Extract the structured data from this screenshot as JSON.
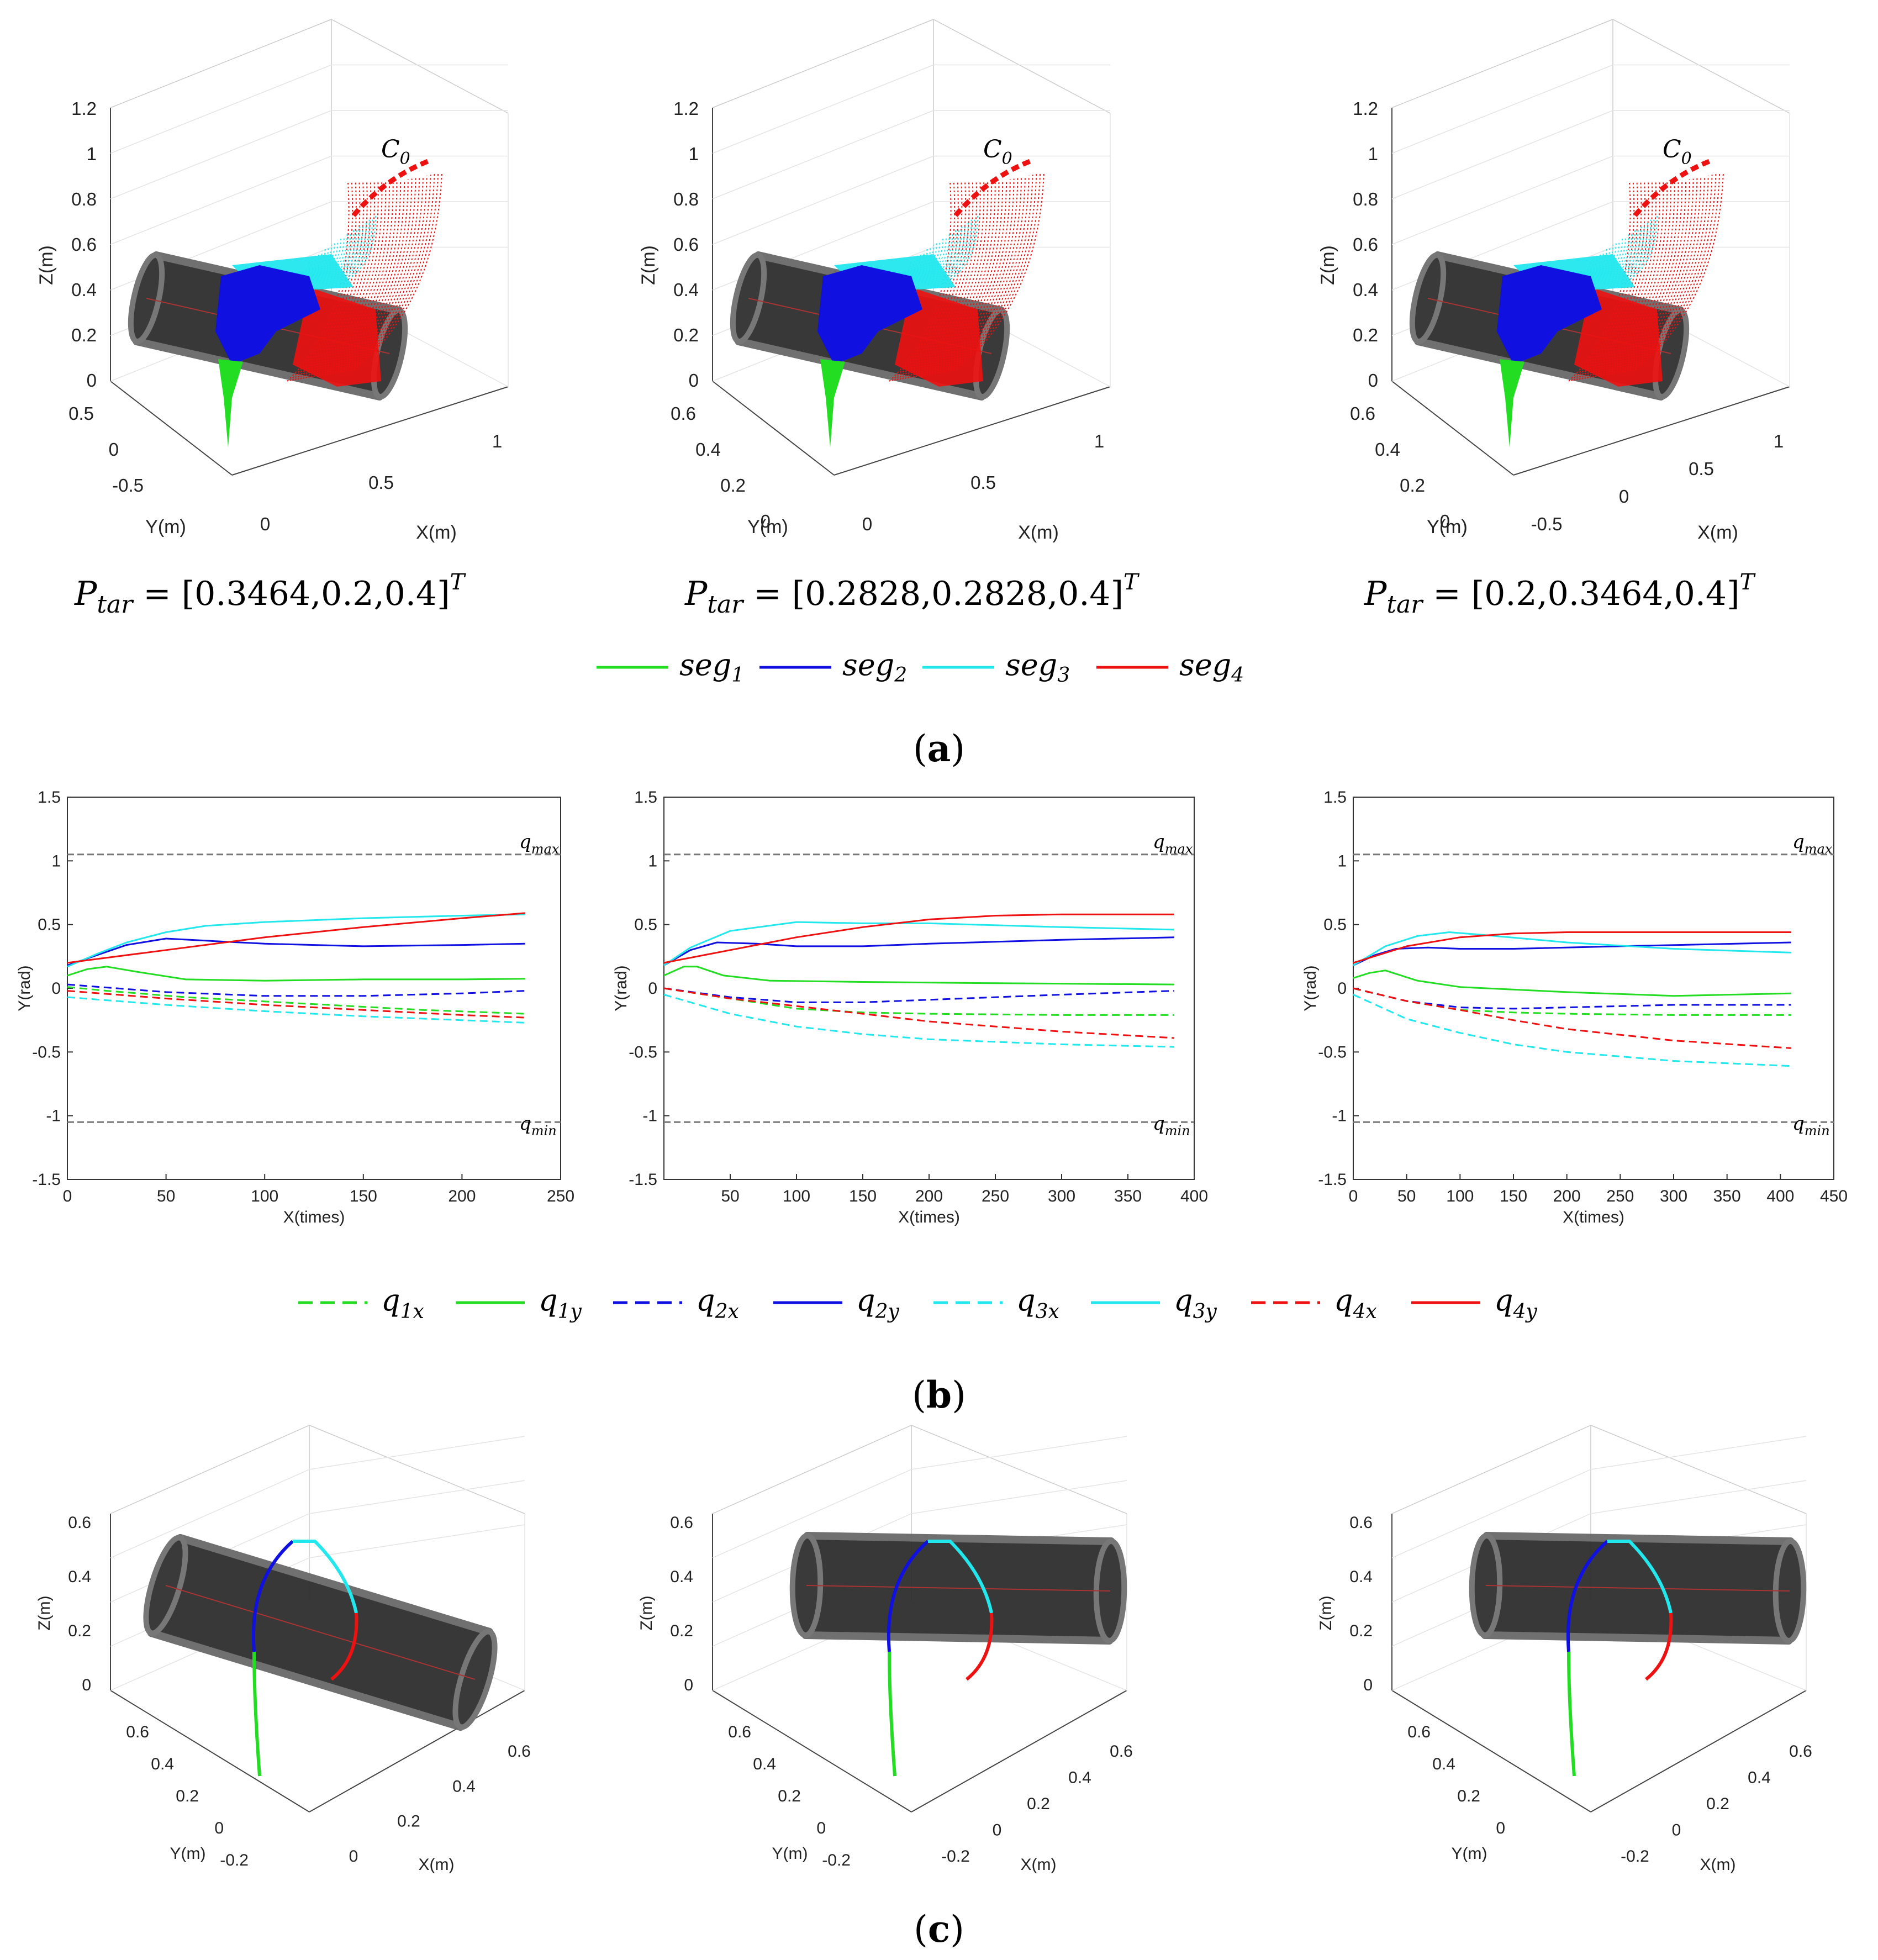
{
  "figure": {
    "panel_a_label": "a",
    "panel_b_label": "b",
    "panel_c_label": "c",
    "colors": {
      "seg1": "#22dd22",
      "seg2": "#1010e0",
      "seg3": "#22e8ee",
      "seg4": "#ee1111",
      "obstacle": "#333333",
      "bound": "#888888"
    }
  },
  "panel_a": {
    "targets": [
      {
        "prefix": "P",
        "sub": "tar",
        "value": " = [0.3464,0.2,0.4]",
        "sup": "T"
      },
      {
        "prefix": "P",
        "sub": "tar",
        "value": " = [0.2828,0.2828,0.4]",
        "sup": "T"
      },
      {
        "prefix": "P",
        "sub": "tar",
        "value": " = [0.2,0.3464,0.4]",
        "sup": "T"
      }
    ],
    "start_label": "C",
    "start_sub": "0",
    "plots": [
      {
        "zlabel": "Z(m)",
        "ylabel": "Y(m)",
        "xlabel": "X(m)",
        "zticks": [
          "0",
          "0.2",
          "0.4",
          "0.6",
          "0.8",
          "1",
          "1.2"
        ],
        "yticks": [
          "0.5",
          "0",
          "-0.5"
        ],
        "xticks": [
          "0",
          "0.5",
          "1"
        ]
      },
      {
        "zlabel": "Z(m)",
        "ylabel": "Y(m)",
        "xlabel": "X(m)",
        "zticks": [
          "0",
          "0.2",
          "0.4",
          "0.6",
          "0.8",
          "1",
          "1.2"
        ],
        "yticks": [
          "0.6",
          "0.4",
          "0.2",
          "0"
        ],
        "xticks": [
          "0",
          "0.5",
          "1"
        ]
      },
      {
        "zlabel": "Z(m)",
        "ylabel": "Y(m)",
        "xlabel": "X(m)",
        "zticks": [
          "0",
          "0.2",
          "0.4",
          "0.6",
          "0.8",
          "1",
          "1.2"
        ],
        "yticks": [
          "0.6",
          "0.4",
          "0.2",
          "0"
        ],
        "xticks": [
          "-0.5",
          "0",
          "0.5",
          "1"
        ]
      }
    ],
    "legend": [
      {
        "base": "seg",
        "sub": "1",
        "color": "#22dd22"
      },
      {
        "base": "seg",
        "sub": "2",
        "color": "#1010e0"
      },
      {
        "base": "seg",
        "sub": "3",
        "color": "#22e8ee"
      },
      {
        "base": "seg",
        "sub": "4",
        "color": "#ee1111"
      }
    ]
  },
  "chart_data": [
    {
      "type": "line",
      "title": "",
      "xlabel": "X(times)",
      "ylabel": "Y(rad)",
      "xlim": [
        0,
        250
      ],
      "ylim": [
        -1.5,
        1.5
      ],
      "xticks": [
        0,
        50,
        100,
        150,
        200,
        250
      ],
      "yticks": [
        -1.5,
        -1,
        -0.5,
        0,
        0.5,
        1,
        1.5
      ],
      "bounds": {
        "q_max": 1.05,
        "q_min": -1.05
      },
      "series": [
        {
          "name": "q1x",
          "x": [
            0,
            20,
            60,
            120,
            180,
            232
          ],
          "values": [
            0.01,
            -0.02,
            -0.07,
            -0.12,
            -0.17,
            -0.2
          ]
        },
        {
          "name": "q1y",
          "x": [
            0,
            10,
            20,
            35,
            60,
            100,
            150,
            200,
            232
          ],
          "values": [
            0.1,
            0.15,
            0.17,
            0.13,
            0.07,
            0.06,
            0.07,
            0.07,
            0.075
          ]
        },
        {
          "name": "q2x",
          "x": [
            0,
            50,
            100,
            150,
            200,
            232
          ],
          "values": [
            0.03,
            -0.03,
            -0.06,
            -0.06,
            -0.04,
            -0.02
          ]
        },
        {
          "name": "q2y",
          "x": [
            0,
            15,
            30,
            50,
            75,
            100,
            150,
            200,
            232
          ],
          "values": [
            0.18,
            0.26,
            0.34,
            0.39,
            0.37,
            0.35,
            0.33,
            0.34,
            0.35
          ]
        },
        {
          "name": "q3x",
          "x": [
            0,
            50,
            100,
            150,
            200,
            232
          ],
          "values": [
            -0.07,
            -0.13,
            -0.18,
            -0.22,
            -0.25,
            -0.27
          ]
        },
        {
          "name": "q3y",
          "x": [
            0,
            15,
            30,
            50,
            70,
            100,
            150,
            200,
            232
          ],
          "values": [
            0.17,
            0.27,
            0.36,
            0.44,
            0.49,
            0.52,
            0.55,
            0.57,
            0.58
          ]
        },
        {
          "name": "q4x",
          "x": [
            0,
            50,
            100,
            150,
            200,
            232
          ],
          "values": [
            -0.02,
            -0.08,
            -0.13,
            -0.17,
            -0.21,
            -0.23
          ]
        },
        {
          "name": "q4y",
          "x": [
            0,
            50,
            100,
            150,
            200,
            232
          ],
          "values": [
            0.2,
            0.3,
            0.4,
            0.48,
            0.55,
            0.59
          ]
        }
      ]
    },
    {
      "type": "line",
      "title": "",
      "xlabel": "X(times)",
      "ylabel": "Y(rad)",
      "xlim": [
        0,
        400
      ],
      "ylim": [
        -1.5,
        1.5
      ],
      "xticks": [
        50,
        100,
        150,
        200,
        250,
        300,
        350,
        400
      ],
      "yticks": [
        -1.5,
        -1,
        -0.5,
        0,
        0.5,
        1,
        1.5
      ],
      "bounds": {
        "q_max": 1.05,
        "q_min": -1.05
      },
      "series": [
        {
          "name": "q1x",
          "x": [
            0,
            50,
            100,
            150,
            200,
            300,
            385
          ],
          "values": [
            0.0,
            -0.08,
            -0.16,
            -0.19,
            -0.2,
            -0.21,
            -0.21
          ]
        },
        {
          "name": "q1y",
          "x": [
            0,
            15,
            25,
            45,
            80,
            150,
            250,
            385
          ],
          "values": [
            0.1,
            0.17,
            0.17,
            0.1,
            0.06,
            0.05,
            0.04,
            0.03
          ]
        },
        {
          "name": "q2x",
          "x": [
            0,
            50,
            100,
            150,
            200,
            300,
            385
          ],
          "values": [
            0.0,
            -0.07,
            -0.11,
            -0.11,
            -0.09,
            -0.05,
            -0.02
          ]
        },
        {
          "name": "q2y",
          "x": [
            0,
            20,
            40,
            70,
            100,
            150,
            200,
            300,
            385
          ],
          "values": [
            0.18,
            0.3,
            0.36,
            0.35,
            0.33,
            0.33,
            0.35,
            0.38,
            0.4
          ]
        },
        {
          "name": "q3x",
          "x": [
            0,
            50,
            100,
            150,
            200,
            300,
            385
          ],
          "values": [
            -0.05,
            -0.2,
            -0.3,
            -0.36,
            -0.4,
            -0.44,
            -0.46
          ]
        },
        {
          "name": "q3y",
          "x": [
            0,
            20,
            50,
            100,
            150,
            200,
            300,
            385
          ],
          "values": [
            0.18,
            0.32,
            0.45,
            0.52,
            0.51,
            0.51,
            0.48,
            0.46
          ]
        },
        {
          "name": "q4x",
          "x": [
            0,
            50,
            100,
            150,
            200,
            300,
            385
          ],
          "values": [
            0.0,
            -0.08,
            -0.14,
            -0.2,
            -0.26,
            -0.34,
            -0.39
          ]
        },
        {
          "name": "q4y",
          "x": [
            0,
            50,
            100,
            150,
            200,
            250,
            300,
            385
          ],
          "values": [
            0.2,
            0.3,
            0.4,
            0.48,
            0.54,
            0.57,
            0.58,
            0.58
          ]
        }
      ]
    },
    {
      "type": "line",
      "title": "",
      "xlabel": "X(times)",
      "ylabel": "Y(rad)",
      "xlim": [
        0,
        450
      ],
      "ylim": [
        -1.5,
        1.5
      ],
      "xticks": [
        0,
        50,
        100,
        150,
        200,
        250,
        300,
        350,
        400,
        450
      ],
      "yticks": [
        -1.5,
        -1,
        -0.5,
        0,
        0.5,
        1,
        1.5
      ],
      "bounds": {
        "q_max": 1.05,
        "q_min": -1.05
      },
      "series": [
        {
          "name": "q1x",
          "x": [
            0,
            50,
            100,
            150,
            200,
            300,
            410
          ],
          "values": [
            0.0,
            -0.1,
            -0.17,
            -0.19,
            -0.2,
            -0.21,
            -0.21
          ]
        },
        {
          "name": "q1y",
          "x": [
            0,
            15,
            30,
            60,
            100,
            200,
            300,
            410
          ],
          "values": [
            0.08,
            0.12,
            0.14,
            0.06,
            0.01,
            -0.03,
            -0.06,
            -0.04
          ]
        },
        {
          "name": "q2x",
          "x": [
            0,
            50,
            100,
            150,
            200,
            300,
            410
          ],
          "values": [
            0.0,
            -0.1,
            -0.15,
            -0.16,
            -0.15,
            -0.13,
            -0.13
          ]
        },
        {
          "name": "q2y",
          "x": [
            0,
            20,
            40,
            70,
            100,
            150,
            250,
            410
          ],
          "values": [
            0.18,
            0.26,
            0.31,
            0.32,
            0.31,
            0.31,
            0.33,
            0.36
          ]
        },
        {
          "name": "q3x",
          "x": [
            0,
            50,
            100,
            150,
            200,
            300,
            410
          ],
          "values": [
            -0.05,
            -0.24,
            -0.35,
            -0.44,
            -0.5,
            -0.57,
            -0.61
          ]
        },
        {
          "name": "q3y",
          "x": [
            0,
            30,
            60,
            90,
            120,
            200,
            300,
            410
          ],
          "values": [
            0.18,
            0.33,
            0.41,
            0.44,
            0.42,
            0.36,
            0.31,
            0.28
          ]
        },
        {
          "name": "q4x",
          "x": [
            0,
            50,
            100,
            150,
            200,
            300,
            410
          ],
          "values": [
            0.0,
            -0.1,
            -0.17,
            -0.25,
            -0.32,
            -0.41,
            -0.47
          ]
        },
        {
          "name": "q4y",
          "x": [
            0,
            50,
            100,
            150,
            200,
            300,
            410
          ],
          "values": [
            0.2,
            0.33,
            0.4,
            0.43,
            0.44,
            0.44,
            0.44
          ]
        }
      ]
    }
  ],
  "panel_b": {
    "qmax_label": "q",
    "qmax_sub": "max",
    "qmin_label": "q",
    "qmin_sub": "min",
    "legend": [
      {
        "base": "q",
        "sub": "1x",
        "color": "#22dd22",
        "dashed": true
      },
      {
        "base": "q",
        "sub": "1y",
        "color": "#22dd22",
        "dashed": false
      },
      {
        "base": "q",
        "sub": "2x",
        "color": "#1010e0",
        "dashed": true
      },
      {
        "base": "q",
        "sub": "2y",
        "color": "#1010e0",
        "dashed": false
      },
      {
        "base": "q",
        "sub": "3x",
        "color": "#22e8ee",
        "dashed": true
      },
      {
        "base": "q",
        "sub": "3y",
        "color": "#22e8ee",
        "dashed": false
      },
      {
        "base": "q",
        "sub": "4x",
        "color": "#ee1111",
        "dashed": true
      },
      {
        "base": "q",
        "sub": "4y",
        "color": "#ee1111",
        "dashed": false
      }
    ]
  },
  "panel_c": {
    "plots": [
      {
        "zlabel": "Z(m)",
        "ylabel": "Y(m)",
        "xlabel": "X(m)",
        "zticks": [
          "0",
          "0.2",
          "0.4",
          "0.6"
        ],
        "yticks": [
          "0.6",
          "0.4",
          "0.2",
          "0",
          "-0.2"
        ],
        "xticks": [
          "0",
          "0.2",
          "0.4",
          "0.6"
        ]
      },
      {
        "zlabel": "Z(m)",
        "ylabel": "Y(m)",
        "xlabel": "X(m)",
        "zticks": [
          "0",
          "0.2",
          "0.4",
          "0.6"
        ],
        "yticks": [
          "0.6",
          "0.4",
          "0.2",
          "0",
          "-0.2"
        ],
        "xticks": [
          "-0.2",
          "0",
          "0.2",
          "0.4",
          "0.6"
        ]
      },
      {
        "zlabel": "Z(m)",
        "ylabel": "Y(m)",
        "xlabel": "X(m)",
        "zticks": [
          "0",
          "0.2",
          "0.4",
          "0.6"
        ],
        "yticks": [
          "0.6",
          "0.4",
          "0.2",
          "0"
        ],
        "xticks": [
          "-0.2",
          "0",
          "0.2",
          "0.4",
          "0.6"
        ]
      }
    ]
  }
}
